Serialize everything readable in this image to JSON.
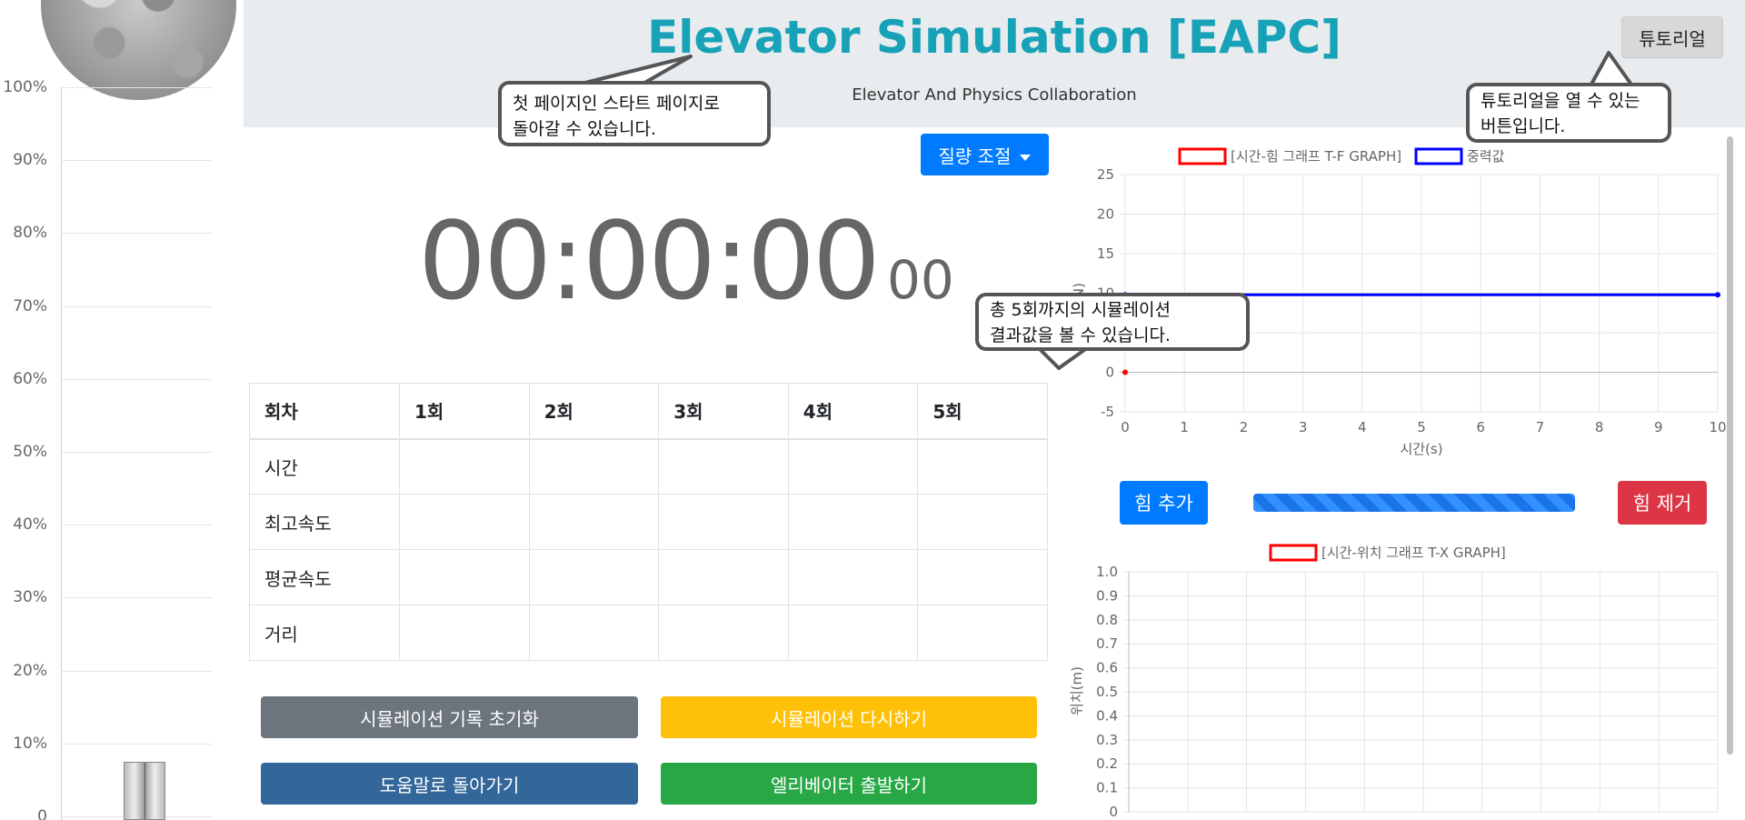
{
  "header": {
    "title": "Elevator Simulation [EAPC]",
    "subtitle": "Elevator And Physics Collaboration",
    "tutorial_label": "튜토리얼"
  },
  "shaft": {
    "ticks": [
      "100%",
      "90%",
      "80%",
      "70%",
      "60%",
      "50%",
      "40%",
      "30%",
      "20%",
      "10%",
      "0"
    ]
  },
  "mass_dropdown": {
    "label": "질량 조절"
  },
  "timer": {
    "main": "00:00:00",
    "ms": "00"
  },
  "results_table": {
    "headers": [
      "회차",
      "1회",
      "2회",
      "3회",
      "4회",
      "5회"
    ],
    "rows": [
      {
        "label": "시간",
        "values": [
          "",
          "",
          "",
          "",
          ""
        ]
      },
      {
        "label": "최고속도",
        "values": [
          "",
          "",
          "",
          "",
          ""
        ]
      },
      {
        "label": "평균속도",
        "values": [
          "",
          "",
          "",
          "",
          ""
        ]
      },
      {
        "label": "거리",
        "values": [
          "",
          "",
          "",
          "",
          ""
        ]
      }
    ]
  },
  "buttons": {
    "reset": "시뮬레이션 기록 초기화",
    "retry": "시뮬레이션 다시하기",
    "help": "도움말로 돌아가기",
    "start": "엘리베이터 출발하기"
  },
  "force_controls": {
    "add": "힘 추가",
    "remove": "힘 제거",
    "progress": 1.0
  },
  "callouts": {
    "start_page_line1": "첫 페이지인 스타트 페이지로",
    "start_page_line2": "돌아갈 수 있습니다.",
    "tutorial_line1": "튜토리얼을 열 수 있는",
    "tutorial_line2": "버튼입니다.",
    "results_line1": "총 5회까지의 시뮬레이션",
    "results_line2": "결과값을 볼 수 있습니다."
  },
  "chart_data": [
    {
      "type": "line",
      "legend": [
        "[시간-힘 그래프 T-F GRAPH]",
        "중력값"
      ],
      "legend_placement": "top",
      "xlabel": "시간(s)",
      "ylabel": "(N)",
      "xlim": [
        0,
        10
      ],
      "ylim": [
        -5,
        25
      ],
      "x_ticks": [
        0,
        1,
        2,
        3,
        4,
        5,
        6,
        7,
        8,
        9,
        10
      ],
      "y_ticks": [
        -5,
        0,
        5,
        10,
        15,
        20,
        25
      ],
      "grid": true,
      "series": [
        {
          "name": "[시간-힘 그래프 T-F GRAPH]",
          "color": "#ff0000",
          "points": [
            [
              0,
              0
            ]
          ]
        },
        {
          "name": "중력값",
          "color": "#0000ff",
          "points": [
            [
              0,
              9.8
            ],
            [
              10,
              9.8
            ]
          ]
        }
      ]
    },
    {
      "type": "line",
      "legend": [
        "[시간-위치 그래프 T-X GRAPH]"
      ],
      "legend_placement": "top",
      "ylabel": "위치(m)",
      "ylim": [
        0,
        1.0
      ],
      "y_ticks": [
        "0",
        "0.1",
        "0.2",
        "0.3",
        "0.4",
        "0.5",
        "0.6",
        "0.7",
        "0.8",
        "0.9",
        "1.0"
      ],
      "grid": true,
      "series": [
        {
          "name": "[시간-위치 그래프 T-X GRAPH]",
          "color": "#ff0000",
          "points": []
        }
      ]
    }
  ]
}
